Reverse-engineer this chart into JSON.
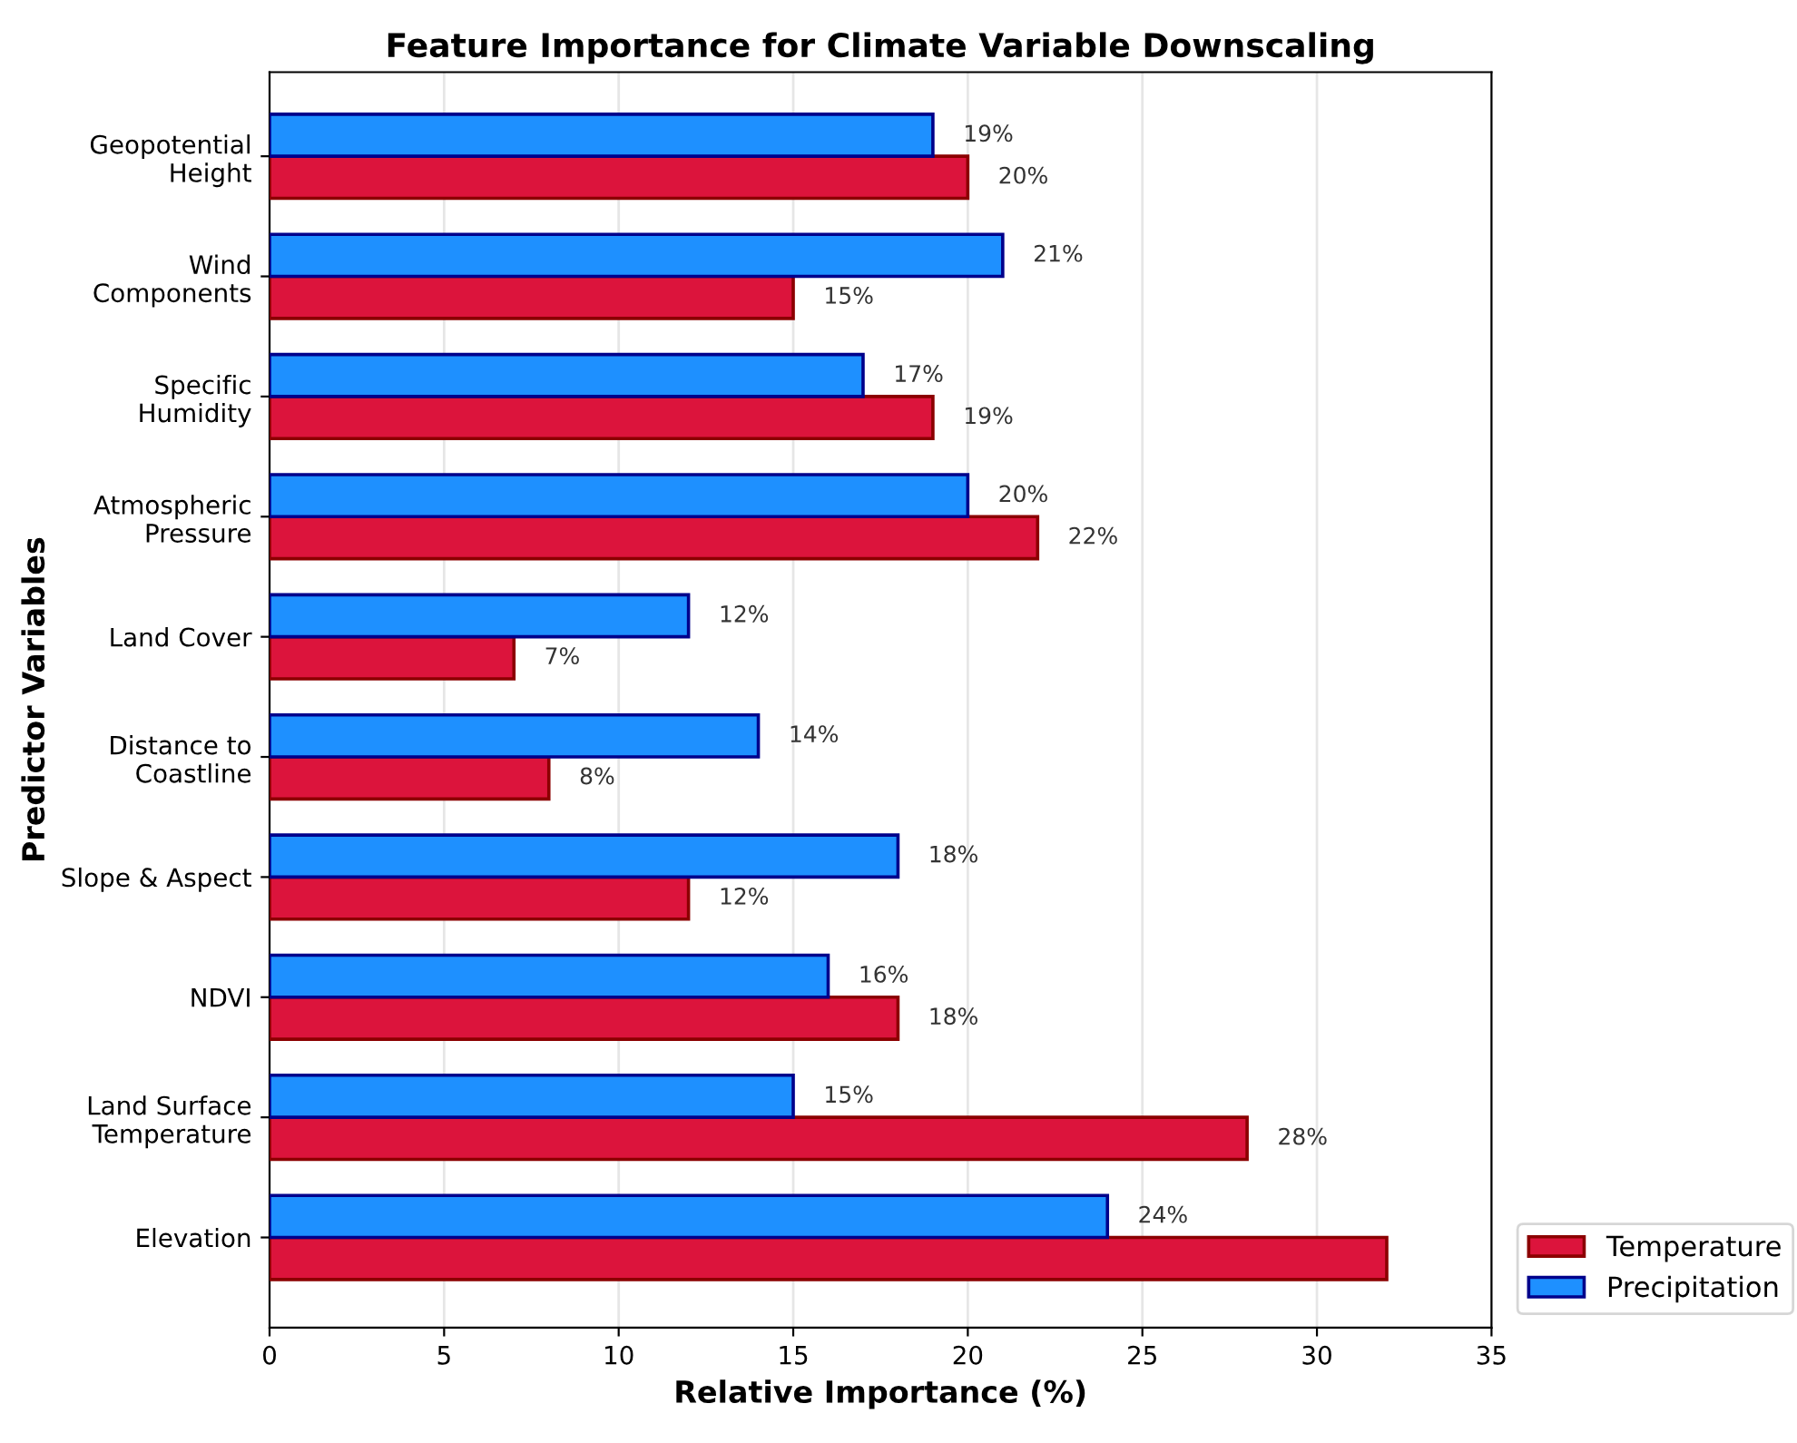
{
  "chart_data": {
    "type": "bar",
    "orientation": "horizontal",
    "title": "Feature Importance for Climate Variable Downscaling",
    "xlabel": "Relative Importance (%)",
    "ylabel": "Predictor Variables",
    "categories": [
      "Geopotential\nHeight",
      "Wind\nComponents",
      "Specific\nHumidity",
      "Atmospheric\nPressure",
      "Land Cover",
      "Distance to\nCoastline",
      "Slope & Aspect",
      "NDVI",
      "Land Surface\nTemperature",
      "Elevation"
    ],
    "series": [
      {
        "name": "Temperature",
        "color": "#dc143c",
        "values": [
          20,
          15,
          19,
          22,
          7,
          8,
          12,
          18,
          28,
          32
        ],
        "value_labels": [
          "20%",
          "15%",
          "19%",
          "22%",
          "7%",
          "8%",
          "12%",
          "18%",
          "28%",
          null
        ]
      },
      {
        "name": "Precipitation",
        "color": "#1e90ff",
        "values": [
          19,
          21,
          17,
          20,
          12,
          14,
          18,
          16,
          15,
          24
        ],
        "value_labels": [
          "19%",
          "21%",
          "17%",
          "20%",
          "12%",
          "14%",
          "18%",
          "16%",
          "15%",
          "24%"
        ]
      }
    ],
    "xlim": [
      0,
      35
    ],
    "xticks": [
      0,
      5,
      10,
      15,
      20,
      25,
      30,
      35
    ],
    "grid": "x",
    "legend": "bottom right"
  }
}
